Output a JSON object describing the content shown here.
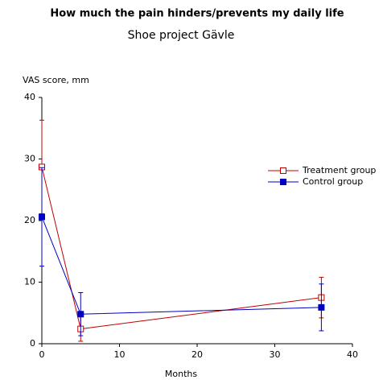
{
  "chart_data": {
    "type": "line",
    "title": "How much the pain hinders/prevents my daily life",
    "subtitle": "Shoe project Gävle",
    "y_label": "VAS score, mm",
    "x_label": "Months",
    "x": [
      0,
      5,
      36
    ],
    "series": [
      {
        "name": "Treatment group",
        "color": "#c00000",
        "marker": "open-square",
        "values": [
          28.7,
          2.4,
          7.5
        ],
        "errors": [
          7.6,
          2.0,
          3.3
        ]
      },
      {
        "name": "Control group",
        "color": "#0000c0",
        "marker": "filled-square",
        "values": [
          20.6,
          4.8,
          5.9
        ],
        "errors": [
          8.0,
          3.5,
          3.8
        ]
      }
    ],
    "xlim": [
      0,
      40
    ],
    "xticks": [
      0,
      10,
      20,
      30,
      40
    ],
    "ylim": [
      0,
      40
    ],
    "yticks": [
      0,
      10,
      20,
      30,
      40
    ],
    "legend": "right"
  }
}
